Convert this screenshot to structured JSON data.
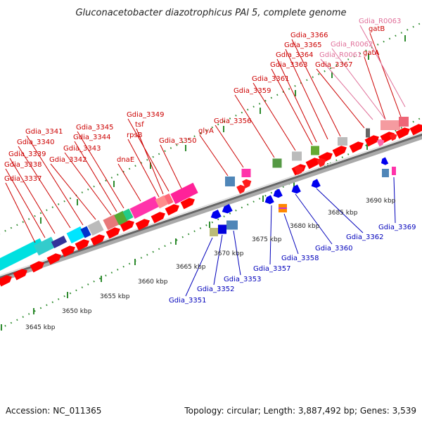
{
  "title": "Gluconacetobacter diazotrophicus PAl 5, complete genome",
  "footer": {
    "accession": "Accession: NC_011365",
    "summary": "Topology: circular; Length: 3,887,492 bp; Genes: 3,539"
  },
  "colors": {
    "forward_label": "#cc0000",
    "reverse_label": "#0000bb",
    "rna_label": "#e0709a",
    "backbone": "#8a8a8a",
    "tick_marks": "#2e8b2e"
  },
  "scale_labels": [
    "3645 kbp",
    "3650 kbp",
    "3655 kbp",
    "3660 kbp",
    "3665 kbp",
    "3670 kbp",
    "3675 kbp",
    "3680 kbp",
    "3685 kbp",
    "3690 kbp"
  ],
  "forward_labels": [
    "Gdia_3337",
    "Gdia_3338",
    "Gdia_3339",
    "Gdia_3340",
    "Gdia_3341",
    "Gdia_3342",
    "Gdia_3343",
    "Gdia_3344",
    "Gdia_3345",
    "dnaE",
    "rpsB",
    "tsf",
    "Gdia_3349",
    "Gdia_3350",
    "glyA",
    "Gdia_3356",
    "Gdia_3359",
    "Gdia_3361",
    "Gdia_3363",
    "Gdia_3364",
    "Gdia_3365",
    "Gdia_3366",
    "Gdia_3367",
    "gatA",
    "gatB"
  ],
  "rna_labels": [
    "Gdia_R0061",
    "Gdia_R0062",
    "Gdia_R0063"
  ],
  "reverse_labels": [
    "Gdia_3351",
    "Gdia_3352",
    "Gdia_3353",
    "Gdia_3357",
    "Gdia_3358",
    "Gdia_3360",
    "Gdia_3362",
    "Gdia_3369"
  ]
}
